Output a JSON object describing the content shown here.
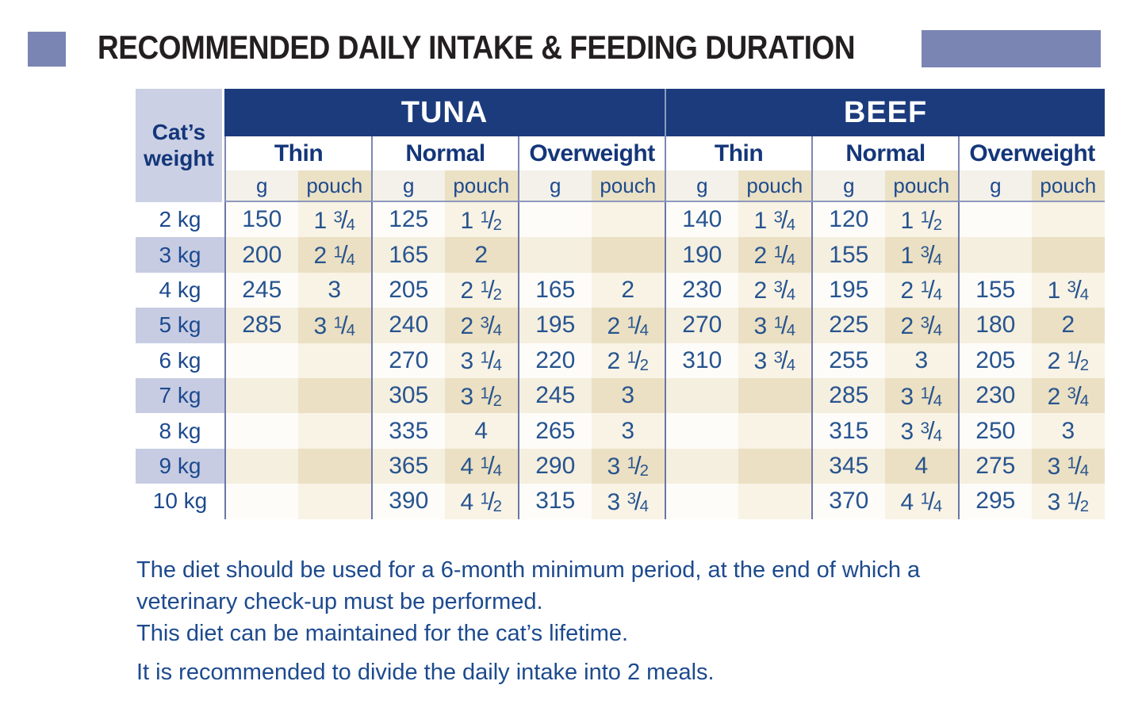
{
  "title": "RECOMMENDED DAILY INTAKE & FEEDING DURATION",
  "colors": {
    "accent_purple": "#7b85b4",
    "header_navy": "#1b3b7d",
    "text_navy": "#1d4a8e",
    "row_stripe_purple": "#c7cce3",
    "pouch_beige_dark": "#ebe0c3",
    "pouch_beige_light": "#f8f3e5",
    "grid_line_blue": "#6b77a8"
  },
  "table": {
    "weight_header": "Cat’s weight",
    "groups": [
      "TUNA",
      "BEEF"
    ],
    "subgroups": [
      "Thin",
      "Normal",
      "Overweight"
    ],
    "units": [
      "g",
      "pouch"
    ],
    "rows": [
      {
        "weight": "2 kg",
        "values": [
          "150",
          "1 3/4",
          "125",
          "1 1/2",
          "",
          "",
          "140",
          "1 3/4",
          "120",
          "1 1/2",
          "",
          ""
        ]
      },
      {
        "weight": "3 kg",
        "values": [
          "200",
          "2 1/4",
          "165",
          "2",
          "",
          "",
          "190",
          "2 1/4",
          "155",
          "1 3/4",
          "",
          ""
        ]
      },
      {
        "weight": "4 kg",
        "values": [
          "245",
          "3",
          "205",
          "2 1/2",
          "165",
          "2",
          "230",
          "2 3/4",
          "195",
          "2 1/4",
          "155",
          "1 3/4"
        ]
      },
      {
        "weight": "5 kg",
        "values": [
          "285",
          "3 1/4",
          "240",
          "2 3/4",
          "195",
          "2 1/4",
          "270",
          "3 1/4",
          "225",
          "2 3/4",
          "180",
          "2"
        ]
      },
      {
        "weight": "6 kg",
        "values": [
          "",
          "",
          "270",
          "3 1/4",
          "220",
          "2 1/2",
          "310",
          "3 3/4",
          "255",
          "3",
          "205",
          "2 1/2"
        ]
      },
      {
        "weight": "7 kg",
        "values": [
          "",
          "",
          "305",
          "3 1/2",
          "245",
          "3",
          "",
          "",
          "285",
          "3 1/4",
          "230",
          "2 3/4"
        ]
      },
      {
        "weight": "8 kg",
        "values": [
          "",
          "",
          "335",
          "4",
          "265",
          "3",
          "",
          "",
          "315",
          "3 3/4",
          "250",
          "3"
        ]
      },
      {
        "weight": "9 kg",
        "values": [
          "",
          "",
          "365",
          "4 1/4",
          "290",
          "3 1/2",
          "",
          "",
          "345",
          "4",
          "275",
          "3 1/4"
        ]
      },
      {
        "weight": "10 kg",
        "values": [
          "",
          "",
          "390",
          "4 1/2",
          "315",
          "3 3/4",
          "",
          "",
          "370",
          "4 1/4",
          "295",
          "3 1/2"
        ]
      }
    ]
  },
  "notes": [
    "The diet should be used for a 6-month minimum period, at the end of which a veterinary check-up must be performed.",
    "This diet can be maintained for the cat’s lifetime.",
    "It is recommended to divide the daily intake into 2 meals."
  ]
}
